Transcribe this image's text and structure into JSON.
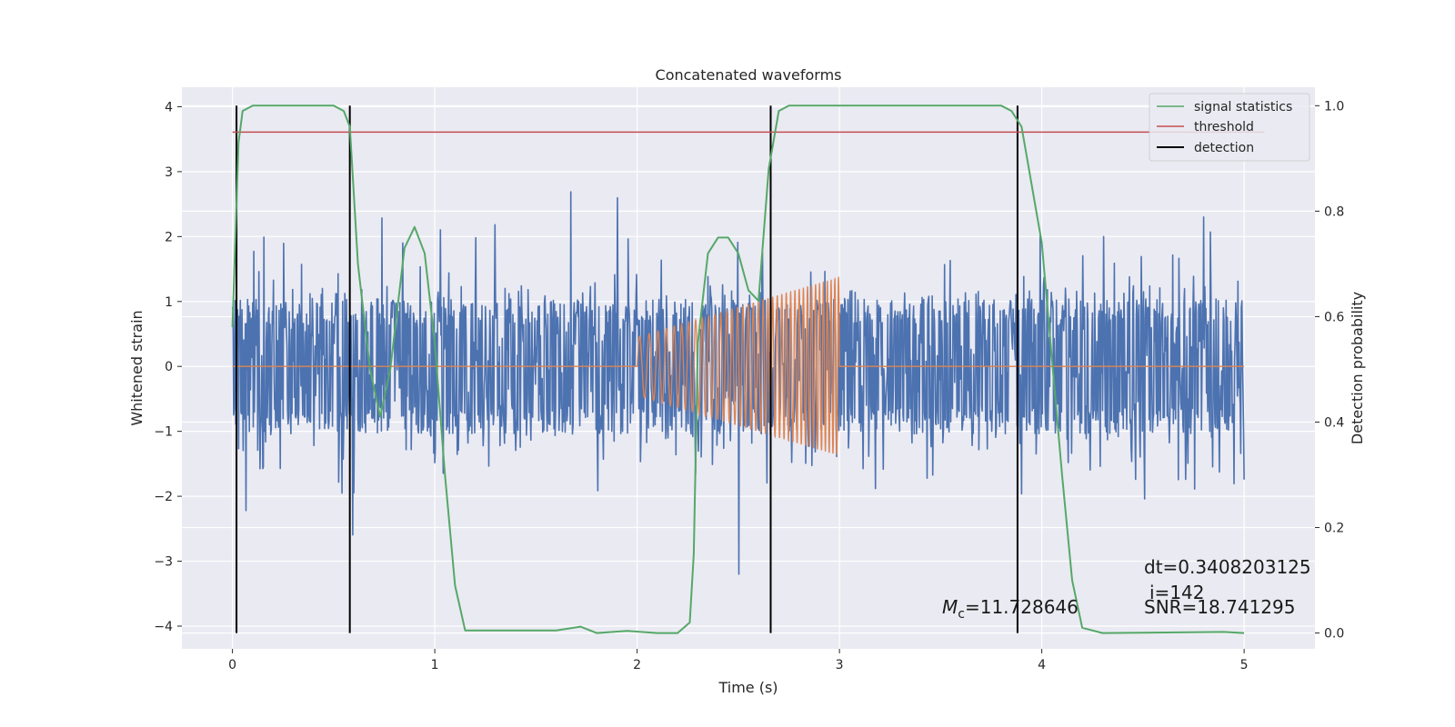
{
  "chart_data": {
    "type": "line",
    "title": "Concatenated waveforms",
    "xlabel": "Time (s)",
    "ylabel": "Whitened strain",
    "y2label": "Detection probability",
    "xlim": [
      -0.25,
      5.35
    ],
    "ylim": [
      -4.35,
      4.3
    ],
    "y2lim": [
      -0.03,
      1.035
    ],
    "x_ticks": [
      0,
      1,
      2,
      3,
      4,
      5
    ],
    "x_tick_labels": [
      "0",
      "1",
      "2",
      "3",
      "4",
      "5"
    ],
    "y_ticks": [
      4,
      3,
      2,
      1,
      0,
      -1,
      -2,
      -3,
      -4
    ],
    "y_tick_labels": [
      "4",
      "3",
      "2",
      "1",
      "0",
      "−1",
      "−2",
      "−3",
      "−4"
    ],
    "y2_ticks": [
      1.0,
      0.8,
      0.6,
      0.4,
      0.2,
      0.0
    ],
    "y2_tick_labels": [
      "1.0",
      "0.8",
      "0.6",
      "0.4",
      "0.2",
      "0.0"
    ],
    "grid": true,
    "legend_position": "top-right",
    "colors": {
      "noise": "#4c72b0",
      "template": "#dd8452",
      "signal_statistics": "#55a868",
      "threshold": "#c44e52",
      "detection": "#000000",
      "plot_background": "#eaeaf2",
      "grid": "#ffffff"
    },
    "noise": {
      "x_range": [
        0,
        5
      ],
      "core_amplitude": 0.8,
      "typical_peak_range": [
        -3.2,
        3.9
      ]
    },
    "template": {
      "zero_segments": [
        [
          0,
          2
        ],
        [
          3,
          5
        ]
      ],
      "chirp_start": 2.0,
      "chirp_end": 3.0,
      "amplitude_start": 0.45,
      "amplitude_end": 1.38,
      "value_outside_chirp": 0
    },
    "threshold": {
      "value": 0.95,
      "x_range": [
        0,
        5.1
      ]
    },
    "detections": [
      0.02,
      0.58,
      2.66,
      3.88
    ],
    "signal_statistics": {
      "x": [
        0,
        0.03,
        0.05,
        0.1,
        0.5,
        0.55,
        0.58,
        0.62,
        0.68,
        0.73,
        0.78,
        0.85,
        0.9,
        0.95,
        1.0,
        1.05,
        1.1,
        1.15,
        1.6,
        1.72,
        1.8,
        1.95,
        2.1,
        2.2,
        2.26,
        2.28,
        2.3,
        2.35,
        2.4,
        2.45,
        2.5,
        2.55,
        2.6,
        2.65,
        2.7,
        2.75,
        2.8,
        3.8,
        3.85,
        3.9,
        3.95,
        4.0,
        4.05,
        4.1,
        4.15,
        4.2,
        4.3,
        4.9,
        5.0
      ],
      "y": [
        0.58,
        0.93,
        0.99,
        1.0,
        1.0,
        0.99,
        0.96,
        0.7,
        0.5,
        0.41,
        0.5,
        0.73,
        0.77,
        0.72,
        0.55,
        0.3,
        0.09,
        0.005,
        0.005,
        0.012,
        0.0,
        0.004,
        0.0,
        0.0,
        0.02,
        0.15,
        0.55,
        0.72,
        0.75,
        0.75,
        0.72,
        0.65,
        0.63,
        0.88,
        0.99,
        1.0,
        1.0,
        1.0,
        0.99,
        0.96,
        0.85,
        0.74,
        0.52,
        0.3,
        0.1,
        0.01,
        0.0,
        0.002,
        0.0
      ]
    },
    "legend": [
      {
        "label": "signal statistics",
        "key": "signal_statistics"
      },
      {
        "label": "threshold",
        "key": "threshold"
      },
      {
        "label": "detection",
        "key": "detection"
      }
    ],
    "annotations": {
      "mc_symbol": "M",
      "mc_subscript": "c",
      "mc_value": "=11.728646",
      "dt": "dt=0.3408203125",
      "i": "i=142",
      "snr": "SNR=18.741295"
    }
  }
}
